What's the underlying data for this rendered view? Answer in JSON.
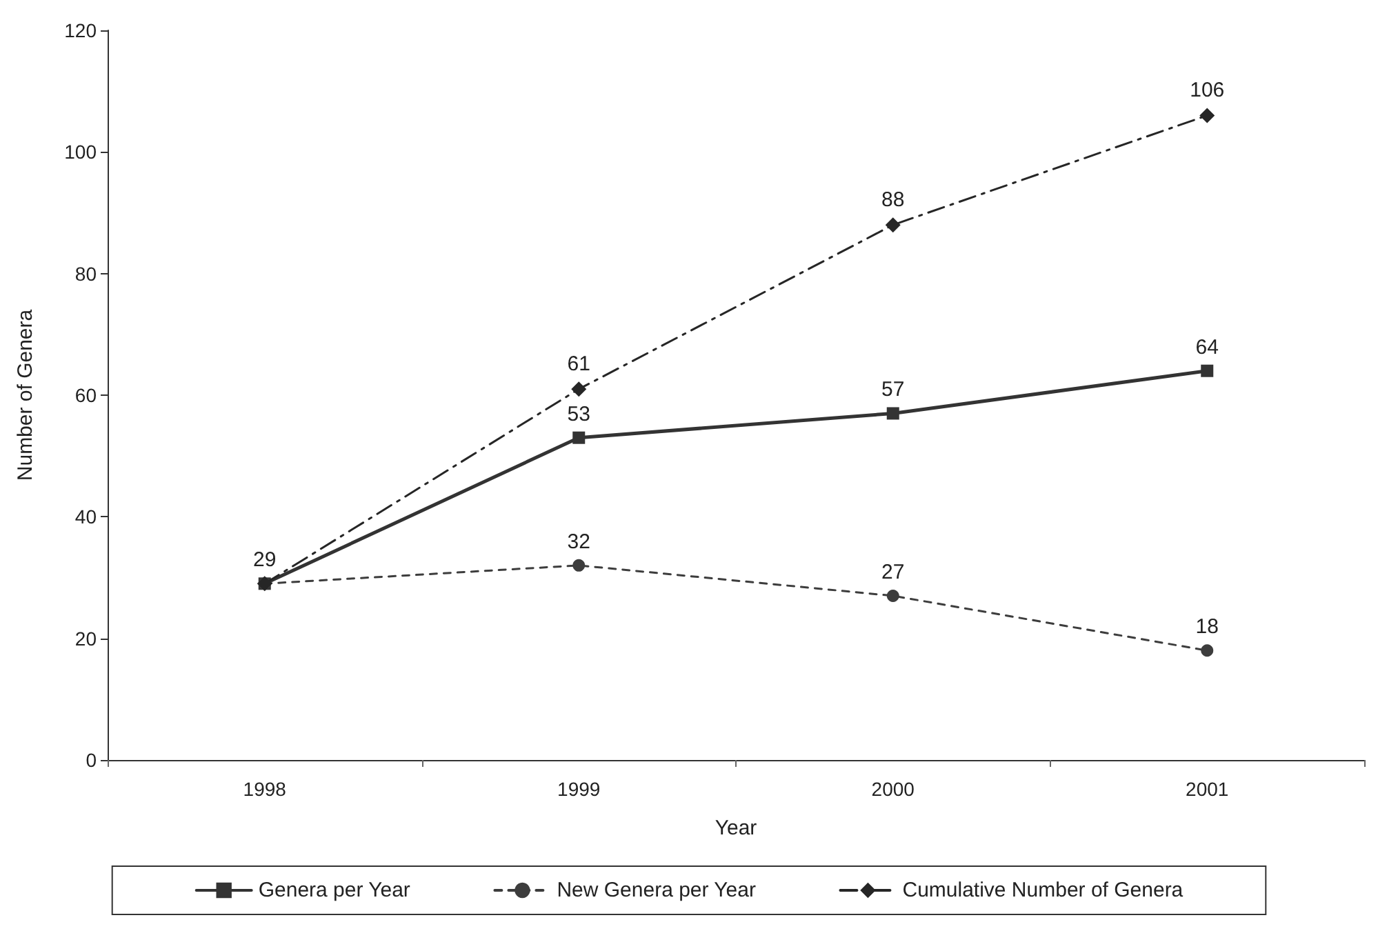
{
  "chart_data": {
    "type": "line",
    "xlabel": "Year",
    "ylabel": "Number of Genera",
    "categories": [
      "1998",
      "1999",
      "2000",
      "2001"
    ],
    "series": [
      {
        "name": "Genera per Year",
        "color": "#333333",
        "values": [
          29,
          53,
          57,
          64
        ],
        "marker": "square",
        "line_style": "solid",
        "value_labels": [
          "29",
          "53",
          "57",
          "64"
        ]
      },
      {
        "name": "New Genera per Year",
        "color": "#3d3d3d",
        "values": [
          29,
          32,
          27,
          18
        ],
        "marker": "circle",
        "line_style": "dotted",
        "value_labels": [
          null,
          "32",
          "27",
          "18"
        ]
      },
      {
        "name": "Cumulative Number of Genera",
        "color": "#262626",
        "values": [
          29,
          61,
          88,
          106
        ],
        "marker": "diamond",
        "line_style": "dashed",
        "value_labels": [
          null,
          "61",
          "88",
          "106"
        ]
      }
    ],
    "ylim": [
      0,
      120
    ],
    "yticks": [
      0,
      20,
      40,
      60,
      80,
      100,
      120
    ],
    "grid": false,
    "legend": "bottom"
  }
}
